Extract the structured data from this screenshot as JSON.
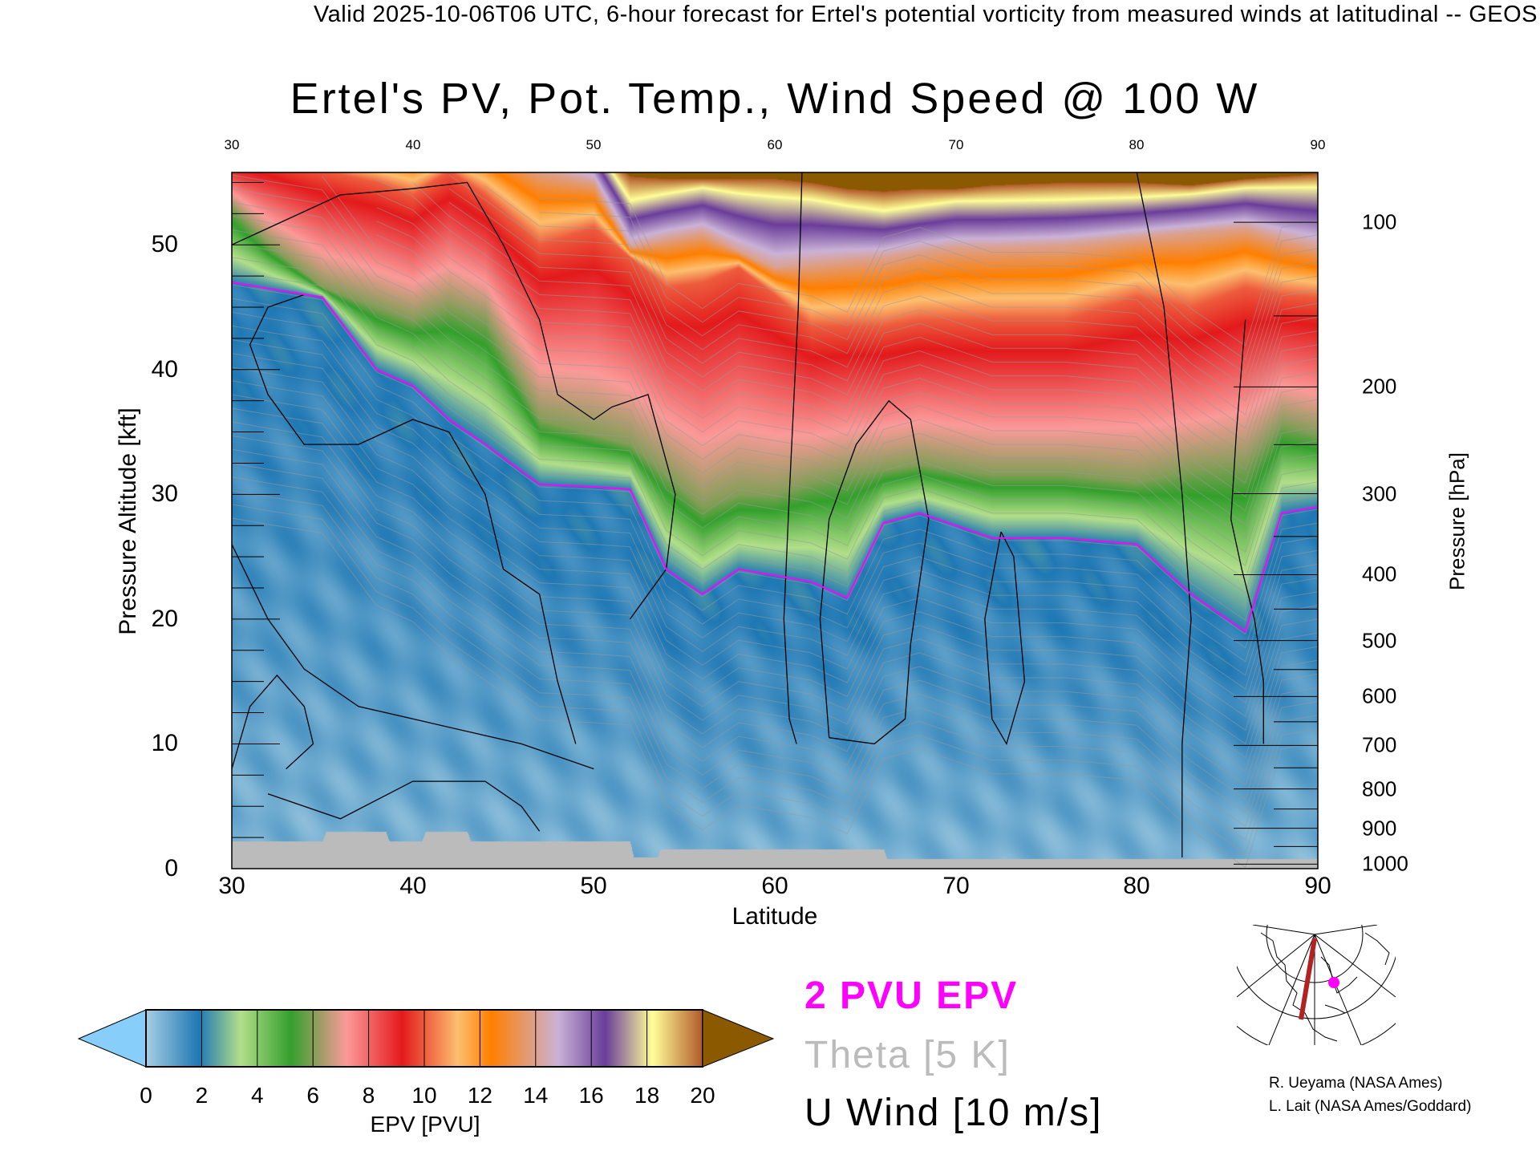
{
  "header": "Valid 2025-10-06T06 UTC, 6-hour forecast for Ertel's potential vorticity from measured winds at latitudinal -- GEOS",
  "chart_data": {
    "type": "heatmap",
    "title": "Ertel's PV, Pot. Temp., Wind Speed @ 100 W",
    "xlabel": "Latitude",
    "ylabel": "Pressure Altitude [kft]",
    "y2label": "Pressure [hPa]",
    "xlim": [
      30,
      90
    ],
    "ylim": [
      0,
      55.8
    ],
    "xticks": [
      "30",
      "40",
      "50",
      "60",
      "70",
      "80",
      "90"
    ],
    "top_xticks": [
      "30",
      "40",
      "50",
      "60",
      "70",
      "80",
      "90"
    ],
    "yticks": [
      "0",
      "10",
      "20",
      "30",
      "40",
      "50"
    ],
    "y2ticks": [
      "100",
      "200",
      "300",
      "400",
      "500",
      "600",
      "700",
      "800",
      "900",
      "1000"
    ],
    "colorbar": {
      "label": "EPV [PVU]",
      "ticks": [
        "0",
        "2",
        "4",
        "6",
        "8",
        "10",
        "12",
        "14",
        "16",
        "18",
        "20"
      ],
      "under_color": "#87cefa",
      "over_color": "#8b5a00",
      "stops": [
        [
          0,
          "#a6cee3"
        ],
        [
          1.9,
          "#1f78b4"
        ],
        [
          3.4,
          "#b2df8a"
        ],
        [
          5.2,
          "#33a02c"
        ],
        [
          7.2,
          "#fb9a99"
        ],
        [
          9.2,
          "#e31a1c"
        ],
        [
          11.2,
          "#fdbf6f"
        ],
        [
          12.4,
          "#ff7f00"
        ],
        [
          14.8,
          "#cab2d6"
        ],
        [
          16.5,
          "#6a3d9a"
        ],
        [
          18.2,
          "#ffff99"
        ],
        [
          20,
          "#b15928"
        ]
      ]
    },
    "pv_contours": {
      "latitudes": [
        30,
        32,
        35,
        38,
        40,
        42,
        44,
        47,
        50,
        52,
        54,
        56,
        58,
        60,
        62,
        64,
        66,
        68,
        70,
        72,
        76,
        80,
        83,
        86,
        88,
        90
      ],
      "levels": {
        "2": [
          47,
          46.5,
          45.8,
          40,
          38.7,
          36,
          34,
          30.8,
          30.6,
          30.4,
          24,
          22,
          24,
          23.5,
          23,
          21.7,
          27.7,
          28.5,
          27.5,
          26.5,
          26.5,
          26,
          22,
          19,
          28.5,
          29
        ],
        "6": [
          53,
          50,
          46.6,
          45,
          44,
          45,
          44,
          36,
          34.8,
          34,
          31.6,
          29,
          30,
          30,
          31,
          31.6,
          32,
          32.4,
          32,
          31.6,
          31.6,
          31,
          32,
          32.4,
          35.6,
          34.8
        ],
        "10": [
          57,
          57,
          56,
          55,
          54,
          56,
          54,
          50,
          51.4,
          49,
          46.6,
          47,
          48.2,
          46,
          43.5,
          43.5,
          43.5,
          44,
          44,
          44,
          44,
          45.8,
          45,
          46.6,
          46,
          45.8
        ],
        "14": [
          58,
          58,
          58,
          58,
          58,
          58,
          58,
          56,
          55,
          49.8,
          50.5,
          51,
          49.5,
          48.2,
          48.5,
          48.8,
          49,
          49.5,
          49.8,
          49.8,
          50,
          50.6,
          51,
          51.4,
          50.5,
          49.8
        ],
        "18": [
          60,
          60,
          60,
          60,
          60,
          60,
          60,
          59,
          58,
          53.4,
          54,
          54.5,
          54,
          53.7,
          53.5,
          53,
          52.6,
          53,
          53.4,
          53.4,
          53.5,
          53.7,
          54,
          54.5,
          54.5,
          54.5
        ],
        "20": [
          61,
          61,
          61,
          61,
          61,
          61,
          61,
          60,
          58,
          55.5,
          55.3,
          55.3,
          55.3,
          55.3,
          55,
          54.5,
          54.3,
          54.5,
          54.5,
          54.8,
          55,
          55,
          54.8,
          55.3,
          55.5,
          55.7
        ]
      }
    },
    "ground_kft": {
      "latitudes": [
        30,
        35,
        35.2,
        38.5,
        38.7,
        40.5,
        40.7,
        43,
        43.2,
        52,
        52.2,
        53.5,
        53.7,
        66,
        66.2,
        90
      ],
      "heights": [
        2.2,
        2.2,
        3,
        3,
        2.2,
        2.2,
        3,
        3,
        2.2,
        2.2,
        0.9,
        0.9,
        1.6,
        1.6,
        0.8,
        0.8
      ]
    },
    "u_wind_contours": [
      {
        "label": "10",
        "points": [
          [
            61.5,
            55.8
          ],
          [
            61.3,
            45
          ],
          [
            60.8,
            30
          ],
          [
            60.5,
            20
          ],
          [
            60.8,
            12
          ],
          [
            61.2,
            10
          ]
        ]
      },
      {
        "label": "0",
        "points": [
          [
            80,
            55.8
          ],
          [
            81.5,
            45
          ],
          [
            82.5,
            30
          ],
          [
            83,
            20
          ],
          [
            82.5,
            10
          ],
          [
            82.5,
            0.9
          ]
        ]
      },
      {
        "label": "10",
        "points": [
          [
            63,
            10.5
          ],
          [
            62.5,
            20
          ],
          [
            63,
            28
          ],
          [
            64.5,
            34
          ],
          [
            66.3,
            37.5
          ],
          [
            67.5,
            36
          ],
          [
            68.5,
            28
          ],
          [
            67.5,
            18
          ],
          [
            67.2,
            12
          ],
          [
            65.5,
            10
          ],
          [
            63,
            10.5
          ]
        ]
      },
      {
        "label": "10",
        "points": [
          [
            72.5,
            27
          ],
          [
            71.6,
            20
          ],
          [
            72,
            12
          ],
          [
            72.8,
            10
          ],
          [
            73.8,
            15
          ],
          [
            73.2,
            25
          ],
          [
            72.5,
            27
          ]
        ]
      },
      {
        "label": "30",
        "points": [
          [
            30,
            50
          ],
          [
            33,
            52
          ],
          [
            36,
            54
          ],
          [
            40,
            54.5
          ],
          [
            43,
            55
          ],
          [
            45,
            50
          ],
          [
            47,
            44
          ],
          [
            48,
            38
          ],
          [
            50,
            36
          ],
          [
            51,
            37
          ],
          [
            53,
            38
          ],
          [
            54.5,
            30
          ],
          [
            54,
            24
          ],
          [
            52,
            20
          ]
        ]
      },
      {
        "label": "30",
        "points": [
          [
            34,
            46
          ],
          [
            32,
            45
          ],
          [
            31,
            42
          ],
          [
            32,
            38
          ],
          [
            34,
            34
          ],
          [
            37,
            34
          ],
          [
            40,
            36
          ],
          [
            42,
            35
          ],
          [
            44,
            30
          ],
          [
            45,
            24
          ],
          [
            47,
            22
          ],
          [
            48,
            15
          ],
          [
            49,
            10
          ]
        ]
      },
      {
        "label": "10",
        "points": [
          [
            30,
            8
          ],
          [
            31,
            13
          ],
          [
            32.5,
            15.5
          ],
          [
            34,
            13
          ],
          [
            34.5,
            10
          ],
          [
            33,
            8
          ]
        ]
      },
      {
        "label": "0",
        "points": [
          [
            30,
            26
          ],
          [
            32,
            20
          ],
          [
            34,
            16
          ],
          [
            37,
            13
          ],
          [
            40,
            12
          ],
          [
            43,
            11
          ],
          [
            46,
            10
          ],
          [
            50,
            8
          ]
        ]
      },
      {
        "label": "0",
        "points": [
          [
            32,
            6
          ],
          [
            36,
            4
          ],
          [
            40,
            7
          ],
          [
            44,
            7
          ],
          [
            46,
            5
          ],
          [
            47,
            3
          ]
        ]
      },
      {
        "label": "0",
        "points": [
          [
            86,
            44
          ],
          [
            85.5,
            35
          ],
          [
            85.2,
            28
          ],
          [
            85.8,
            24
          ],
          [
            86.5,
            20
          ],
          [
            87,
            15
          ],
          [
            87,
            10
          ]
        ]
      }
    ],
    "legend": [
      {
        "label": "2 PVU EPV",
        "color": "#ff00ff"
      },
      {
        "label": "Theta [5 K]",
        "color": "#bbbbbb"
      },
      {
        "label": "U Wind [10 m/s]",
        "color": "#000000"
      }
    ]
  },
  "credits": [
    "R. Ueyama (NASA Ames)",
    "L. Lait (NASA Ames/Goddard)"
  ]
}
